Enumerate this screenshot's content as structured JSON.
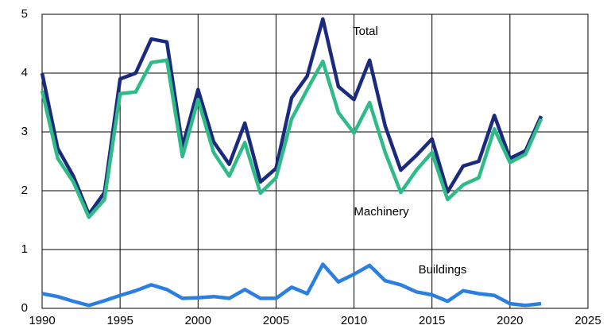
{
  "chart_data": {
    "type": "line",
    "x": [
      1990,
      1991,
      1992,
      1993,
      1994,
      1995,
      1996,
      1997,
      1998,
      1999,
      2000,
      2001,
      2002,
      2003,
      2004,
      2005,
      2006,
      2007,
      2008,
      2009,
      2010,
      2011,
      2012,
      2013,
      2014,
      2015,
      2016,
      2017,
      2018,
      2019,
      2020,
      2021,
      2022
    ],
    "series": [
      {
        "name": "Total",
        "color": "#1b2a7e",
        "values": [
          4.0,
          2.72,
          2.25,
          1.6,
          1.97,
          3.9,
          4.0,
          4.58,
          4.53,
          2.75,
          3.72,
          2.83,
          2.45,
          3.15,
          2.15,
          2.38,
          3.58,
          3.95,
          4.92,
          3.77,
          3.55,
          4.22,
          3.1,
          2.35,
          2.6,
          2.88,
          1.98,
          2.42,
          2.5,
          3.28,
          2.55,
          2.68,
          3.27
        ]
      },
      {
        "name": "Machinery",
        "color": "#2fbb87",
        "values": [
          3.7,
          2.55,
          2.15,
          1.55,
          1.85,
          3.65,
          3.68,
          4.18,
          4.22,
          2.58,
          3.55,
          2.65,
          2.25,
          2.82,
          1.96,
          2.22,
          3.22,
          3.72,
          4.2,
          3.33,
          2.98,
          3.5,
          2.65,
          1.97,
          2.35,
          2.65,
          1.85,
          2.1,
          2.22,
          3.05,
          2.48,
          2.62,
          3.22
        ]
      },
      {
        "name": "Buildings",
        "color": "#2b7fe0",
        "values": [
          0.25,
          0.2,
          0.12,
          0.05,
          0.13,
          0.22,
          0.3,
          0.4,
          0.32,
          0.17,
          0.18,
          0.2,
          0.17,
          0.32,
          0.17,
          0.17,
          0.36,
          0.25,
          0.75,
          0.45,
          0.58,
          0.73,
          0.47,
          0.4,
          0.28,
          0.23,
          0.12,
          0.3,
          0.25,
          0.22,
          0.08,
          0.05,
          0.08
        ]
      }
    ],
    "xlim": [
      1990,
      2025
    ],
    "xticks": [
      1990,
      1995,
      2000,
      2005,
      2010,
      2015,
      2020,
      2025
    ],
    "ylim": [
      0,
      5
    ],
    "yticks": [
      0,
      1,
      2,
      3,
      4,
      5
    ],
    "grid": true
  }
}
